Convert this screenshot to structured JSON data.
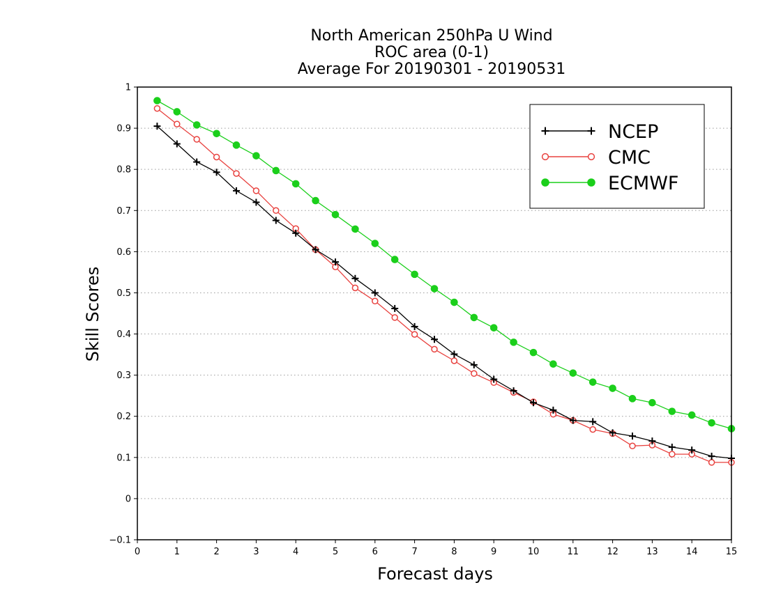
{
  "chart_data": {
    "type": "line",
    "title": [
      "North American 250hPa U Wind",
      "ROC area (0-1)",
      "Average For 20190301 - 20190531"
    ],
    "xlabel": "Forecast days",
    "ylabel": "Skill Scores",
    "xlim": [
      0,
      15
    ],
    "ylim": [
      -0.1,
      1
    ],
    "xticks": [
      "0",
      "1",
      "2",
      "3",
      "4",
      "5",
      "6",
      "7",
      "8",
      "9",
      "10",
      "11",
      "12",
      "13",
      "14",
      "15"
    ],
    "yticks": [
      "−0.1",
      "0",
      "0.1",
      "0.2",
      "0.3",
      "0.4",
      "0.5",
      "0.6",
      "0.7",
      "0.8",
      "0.9",
      "1"
    ],
    "grid": true,
    "legend_position": "top-right",
    "x": [
      0.5,
      1,
      1.5,
      2,
      2.5,
      3,
      3.5,
      4,
      4.5,
      5,
      5.5,
      6,
      6.5,
      7,
      7.5,
      8,
      8.5,
      9,
      9.5,
      10,
      10.5,
      11,
      11.5,
      12,
      12.5,
      13,
      13.5,
      14,
      14.5,
      15
    ],
    "series": [
      {
        "name": "NCEP",
        "color": "#000000",
        "marker": "plus",
        "values": [
          0.905,
          0.862,
          0.818,
          0.793,
          0.748,
          0.72,
          0.676,
          0.645,
          0.605,
          0.575,
          0.535,
          0.5,
          0.462,
          0.418,
          0.387,
          0.351,
          0.325,
          0.29,
          0.262,
          0.233,
          0.215,
          0.19,
          0.187,
          0.16,
          0.152,
          0.14,
          0.125,
          0.118,
          0.103,
          0.098
        ]
      },
      {
        "name": "CMC",
        "color": "#e8413e",
        "marker": "open-circle",
        "values": [
          0.948,
          0.91,
          0.873,
          0.83,
          0.79,
          0.748,
          0.7,
          0.656,
          0.605,
          0.563,
          0.512,
          0.48,
          0.44,
          0.399,
          0.363,
          0.335,
          0.304,
          0.282,
          0.258,
          0.235,
          0.205,
          0.19,
          0.168,
          0.158,
          0.128,
          0.13,
          0.108,
          0.108,
          0.088,
          0.088
        ]
      },
      {
        "name": "ECMWF",
        "color": "#1bcf1b",
        "marker": "filled-circle",
        "values": [
          0.967,
          0.94,
          0.908,
          0.887,
          0.859,
          0.833,
          0.797,
          0.765,
          0.724,
          0.69,
          0.655,
          0.62,
          0.581,
          0.545,
          0.51,
          0.477,
          0.44,
          0.415,
          0.38,
          0.355,
          0.327,
          0.305,
          0.283,
          0.268,
          0.243,
          0.233,
          0.212,
          0.203,
          0.184,
          0.17
        ]
      }
    ]
  }
}
